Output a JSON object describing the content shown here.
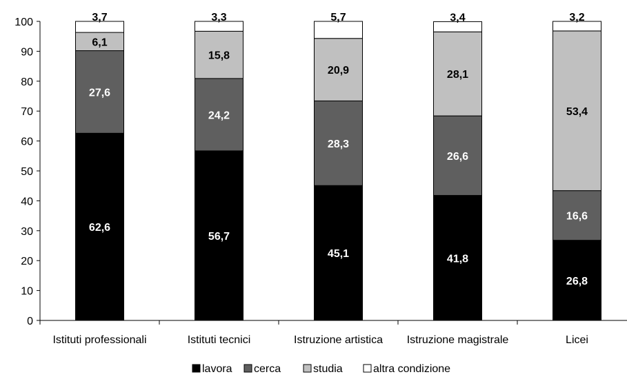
{
  "chart_data": {
    "type": "bar",
    "stacked": true,
    "categories": [
      "Istituti professionali",
      "Istituti tecnici",
      "Istruzione artistica",
      "Istruzione magistrale",
      "Licei"
    ],
    "series": [
      {
        "name": "lavora",
        "values": [
          62.6,
          56.7,
          45.1,
          41.8,
          26.8
        ],
        "labels": [
          "62,6",
          "56,7",
          "45,1",
          "41,8",
          "26,8"
        ],
        "color": "#000000",
        "label_color": "#ffffff"
      },
      {
        "name": "cerca",
        "values": [
          27.6,
          24.2,
          28.3,
          26.6,
          16.6
        ],
        "labels": [
          "27,6",
          "24,2",
          "28,3",
          "26,6",
          "16,6"
        ],
        "color": "#5f5f5f",
        "label_color": "#ffffff"
      },
      {
        "name": "studia",
        "values": [
          6.1,
          15.8,
          20.9,
          28.1,
          53.4
        ],
        "labels": [
          "6,1",
          "15,8",
          "20,9",
          "28,1",
          "53,4"
        ],
        "color": "#c0c0c0",
        "label_color": "#000000"
      },
      {
        "name": "altra condizione",
        "values": [
          3.7,
          3.3,
          5.7,
          3.4,
          3.2
        ],
        "labels": [
          "3,7",
          "3,3",
          "5,7",
          "3,4",
          "3,2"
        ],
        "color": "#ffffff",
        "label_color": "#000000"
      }
    ],
    "ylim": [
      0,
      100
    ],
    "yticks": [
      0,
      10,
      20,
      30,
      40,
      50,
      60,
      70,
      80,
      90,
      100
    ],
    "grid": false,
    "legend_position": "bottom"
  }
}
